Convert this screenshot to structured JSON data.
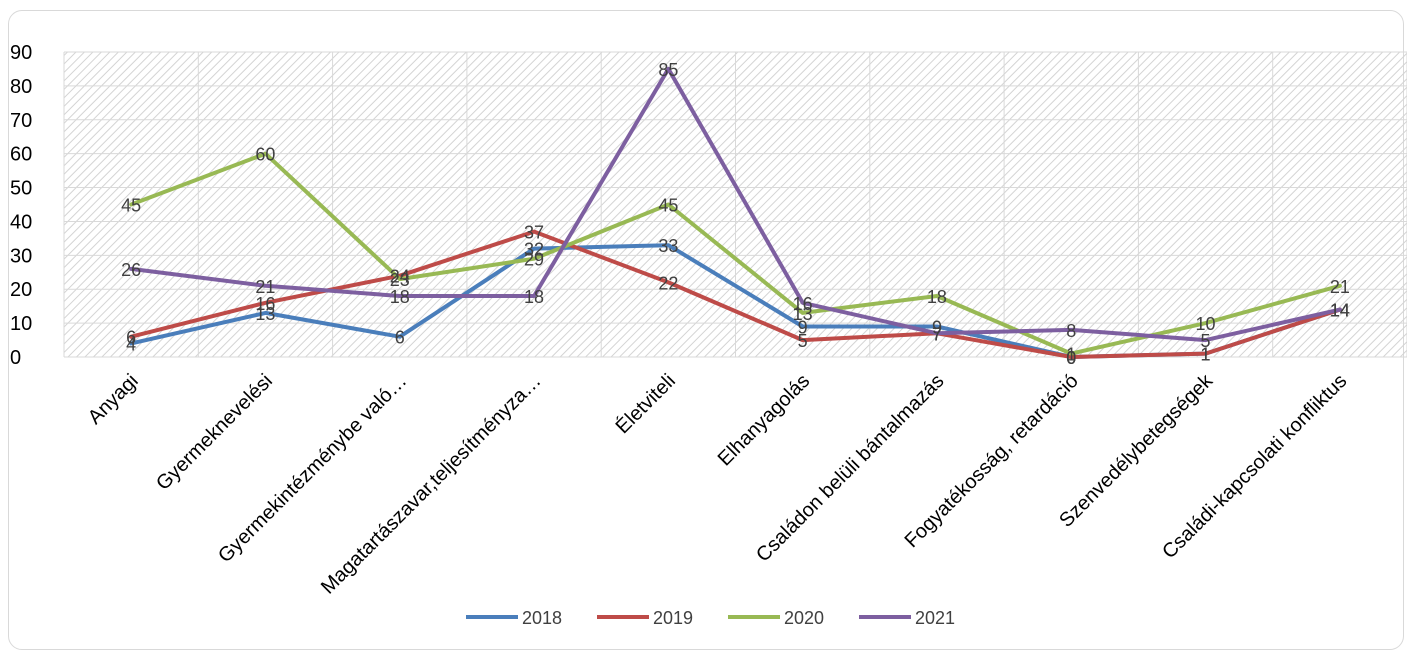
{
  "chart_data": {
    "type": "line",
    "title": "",
    "xlabel": "",
    "ylabel": "",
    "ylim": [
      0,
      90
    ],
    "yticks": [
      0,
      10,
      20,
      30,
      40,
      50,
      60,
      70,
      80,
      90
    ],
    "grid": true,
    "legend_position": "bottom",
    "categories": [
      "Anyagi",
      "Gyermeknevelési",
      "Gyermekintézménybe való…",
      "Magatartászavar,teljesítményza…",
      "Életviteli",
      "Elhanyagolás",
      "Családon belüli bántalmazás",
      "Fogyatékosság, retardáció",
      "Szenvedélybetegségek",
      "Családi-kapcsolati konfliktus"
    ],
    "series": [
      {
        "name": "2018",
        "color": "#4a7ebb",
        "values": [
          4,
          13,
          6,
          32,
          33,
          9,
          9,
          0,
          1,
          14
        ]
      },
      {
        "name": "2019",
        "color": "#be4b48",
        "values": [
          6,
          16,
          24,
          37,
          22,
          5,
          7,
          0,
          1,
          14
        ]
      },
      {
        "name": "2020",
        "color": "#98b954",
        "values": [
          45,
          60,
          23,
          29,
          45,
          13,
          18,
          1,
          10,
          21
        ]
      },
      {
        "name": "2021",
        "color": "#7d5fa0",
        "values": [
          26,
          21,
          18,
          18,
          85,
          16,
          7,
          8,
          5,
          14
        ]
      }
    ]
  }
}
